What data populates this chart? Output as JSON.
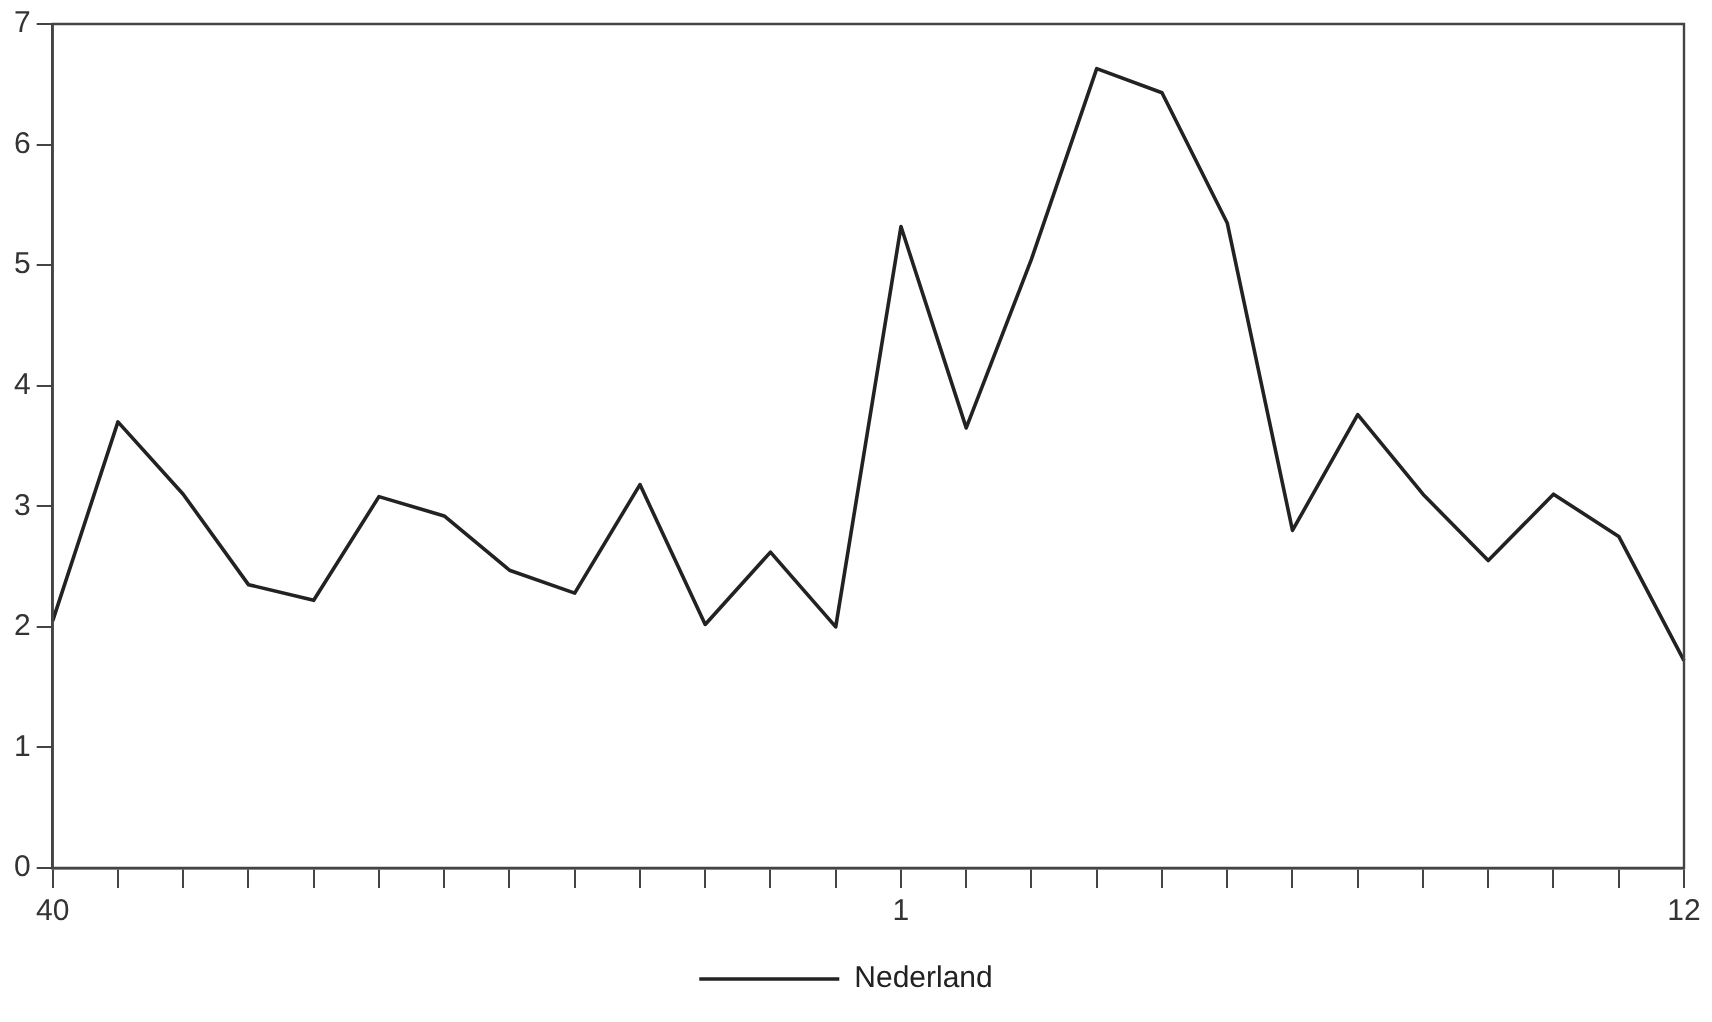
{
  "chart_data": {
    "type": "line",
    "categories": [
      "40",
      null,
      null,
      null,
      null,
      null,
      null,
      null,
      null,
      null,
      null,
      null,
      null,
      "1",
      null,
      null,
      null,
      null,
      null,
      null,
      null,
      null,
      null,
      null,
      null,
      "12"
    ],
    "series": [
      {
        "name": "Nederland",
        "color": "#222222",
        "values": [
          2.05,
          3.7,
          3.1,
          2.35,
          2.22,
          3.08,
          2.92,
          2.47,
          2.28,
          3.18,
          2.02,
          2.62,
          2.0,
          5.32,
          3.65,
          5.05,
          6.63,
          6.43,
          5.35,
          2.8,
          3.76,
          3.1,
          2.55,
          3.1,
          2.75,
          1.72
        ]
      }
    ],
    "ylim": [
      0,
      7
    ],
    "yticks": [
      0,
      1,
      2,
      3,
      4,
      5,
      6,
      7
    ],
    "grid": false,
    "legend": "bottom",
    "marker": "none",
    "line_style": "solid"
  }
}
